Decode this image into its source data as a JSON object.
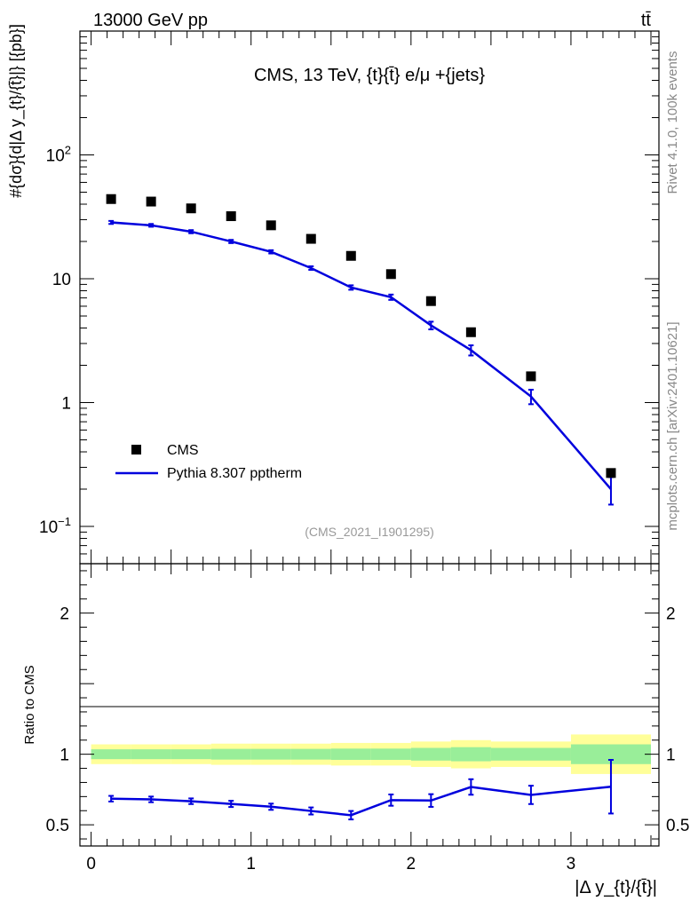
{
  "header": {
    "energy_label": "13000 GeV pp",
    "process_label": "tt̄"
  },
  "side_labels": {
    "rivet": "Rivet 4.1.0,  100k events",
    "mcplots": "mcplots.cern.ch [arXiv:2401.10621]"
  },
  "chart_data": [
    {
      "type": "scatter",
      "panel": "main",
      "title": "CMS, 13 TeV, {t}{t̄} e/μ +{jets}",
      "watermark": "(CMS_2021_I1901295)",
      "ylabel": "#{dσ}{d|Δ y_{t}/{t̄}|} [{pb}]",
      "yscale": "log",
      "ylim": [
        0.05,
        1000
      ],
      "xlim": [
        -0.07,
        3.55
      ],
      "ytick_labels": [
        {
          "value": 0.1,
          "base": "10",
          "exp": "−1"
        },
        {
          "value": 1,
          "base": "1",
          "exp": ""
        },
        {
          "value": 10,
          "base": "10",
          "exp": ""
        },
        {
          "value": 100,
          "base": "10",
          "exp": "2"
        }
      ],
      "legend": {
        "position": "lower-left",
        "entries": [
          "CMS",
          "Pythia 8.307 pptherm"
        ]
      },
      "series": [
        {
          "name": "CMS",
          "style": "black-square-markers",
          "x": [
            0.125,
            0.375,
            0.625,
            0.875,
            1.125,
            1.375,
            1.625,
            1.875,
            2.125,
            2.375,
            2.75,
            3.25
          ],
          "y": [
            44,
            42,
            37,
            32,
            27,
            21,
            15.3,
            10.9,
            6.6,
            3.7,
            1.63,
            0.27
          ]
        },
        {
          "name": "Pythia 8.307 pptherm",
          "style": "blue-line-errorbars",
          "color": "#0000dd",
          "x": [
            0.125,
            0.375,
            0.625,
            0.875,
            1.125,
            1.375,
            1.625,
            1.875,
            2.125,
            2.375,
            2.75,
            3.25
          ],
          "y": [
            28.5,
            27.0,
            24.0,
            20.0,
            16.5,
            12.2,
            8.5,
            7.1,
            4.2,
            2.65,
            1.12,
            0.2
          ],
          "yerr": [
            0.8,
            0.7,
            0.7,
            0.6,
            0.5,
            0.4,
            0.35,
            0.35,
            0.3,
            0.25,
            0.15,
            0.05
          ]
        }
      ]
    },
    {
      "type": "line",
      "panel": "ratio",
      "ylabel": "Ratio to CMS",
      "xlabel": "|Δ y_{t}/{t̄}|",
      "ylim": [
        0.35,
        2.35
      ],
      "xlim": [
        -0.07,
        3.55
      ],
      "xticks": [
        0,
        1,
        2,
        3
      ],
      "xtick_labels": [
        "0",
        "1",
        "2",
        "3"
      ],
      "yticks": [
        0.5,
        1,
        2
      ],
      "ytick_labels": [
        "0.5",
        "1",
        "2"
      ],
      "bands": [
        {
          "name": "total uncertainty",
          "color": "#ffff99",
          "bins": [
            [
              0,
              0.25
            ],
            [
              0.25,
              0.5
            ],
            [
              0.5,
              0.75
            ],
            [
              0.75,
              1.0
            ],
            [
              1.0,
              1.25
            ],
            [
              1.25,
              1.5
            ],
            [
              1.5,
              1.75
            ],
            [
              1.75,
              2.0
            ],
            [
              2.0,
              2.25
            ],
            [
              2.25,
              2.5
            ],
            [
              2.5,
              3.0
            ],
            [
              3.0,
              3.5
            ]
          ],
          "lo": [
            0.93,
            0.93,
            0.93,
            0.925,
            0.925,
            0.925,
            0.92,
            0.92,
            0.91,
            0.9,
            0.91,
            0.86
          ],
          "hi": [
            1.07,
            1.07,
            1.07,
            1.075,
            1.075,
            1.075,
            1.08,
            1.08,
            1.09,
            1.1,
            1.09,
            1.14
          ]
        },
        {
          "name": "stat uncertainty",
          "color": "#99ee99",
          "bins": [
            [
              0,
              0.25
            ],
            [
              0.25,
              0.5
            ],
            [
              0.5,
              0.75
            ],
            [
              0.75,
              1.0
            ],
            [
              1.0,
              1.25
            ],
            [
              1.25,
              1.5
            ],
            [
              1.5,
              1.75
            ],
            [
              1.75,
              2.0
            ],
            [
              2.0,
              2.25
            ],
            [
              2.25,
              2.5
            ],
            [
              2.5,
              3.0
            ],
            [
              3.0,
              3.5
            ]
          ],
          "lo": [
            0.965,
            0.965,
            0.965,
            0.962,
            0.962,
            0.962,
            0.96,
            0.96,
            0.955,
            0.95,
            0.955,
            0.93
          ],
          "hi": [
            1.035,
            1.035,
            1.035,
            1.038,
            1.038,
            1.038,
            1.04,
            1.04,
            1.045,
            1.05,
            1.045,
            1.07
          ]
        }
      ],
      "series": [
        {
          "name": "Pythia 8.307 pptherm / CMS",
          "color": "#0000dd",
          "x": [
            0.125,
            0.375,
            0.625,
            0.875,
            1.125,
            1.375,
            1.625,
            1.875,
            2.125,
            2.375,
            2.75,
            3.25
          ],
          "y": [
            0.685,
            0.68,
            0.667,
            0.648,
            0.628,
            0.598,
            0.568,
            0.675,
            0.672,
            0.768,
            0.712,
            0.77
          ],
          "yerr": [
            0.02,
            0.02,
            0.02,
            0.022,
            0.022,
            0.025,
            0.03,
            0.04,
            0.045,
            0.055,
            0.065,
            0.19
          ]
        }
      ]
    }
  ]
}
